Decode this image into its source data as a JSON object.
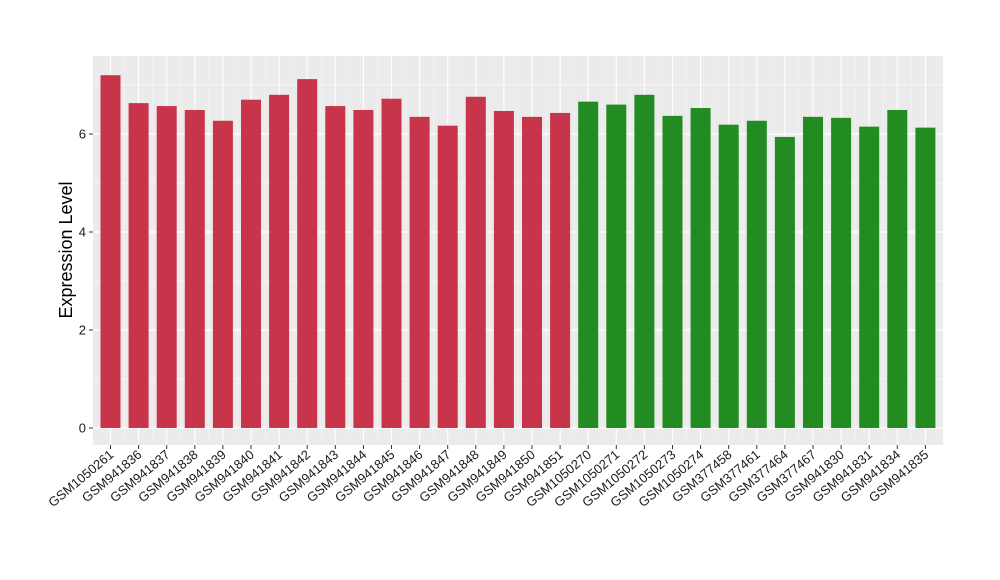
{
  "chart_data": {
    "type": "bar",
    "title": "",
    "xlabel": "",
    "ylabel": "Expression Level",
    "ylim": [
      0,
      7.6
    ],
    "yticks": [
      0,
      2,
      4,
      6
    ],
    "grid": true,
    "legend": "none",
    "colors": {
      "group_a": "#c8344a",
      "group_b": "#228b22",
      "panel_bg": "#ebebeb",
      "grid": "#ffffff"
    },
    "categories": [
      "GSM1050261",
      "GSM941836",
      "GSM941837",
      "GSM941838",
      "GSM941839",
      "GSM941840",
      "GSM941841",
      "GSM941842",
      "GSM941843",
      "GSM941844",
      "GSM941845",
      "GSM941846",
      "GSM941847",
      "GSM941848",
      "GSM941849",
      "GSM941850",
      "GSM941851",
      "GSM1050270",
      "GSM1050271",
      "GSM1050272",
      "GSM1050273",
      "GSM1050274",
      "GSM377458",
      "GSM377461",
      "GSM377464",
      "GSM377467",
      "GSM941830",
      "GSM941831",
      "GSM941834",
      "GSM941835"
    ],
    "values": [
      7.2,
      6.63,
      6.57,
      6.49,
      6.27,
      6.7,
      6.8,
      7.12,
      6.57,
      6.49,
      6.72,
      6.35,
      6.17,
      6.76,
      6.47,
      6.35,
      6.43,
      6.66,
      6.6,
      6.8,
      6.37,
      6.53,
      6.19,
      6.27,
      5.94,
      6.35,
      6.33,
      6.15,
      6.49,
      6.13
    ],
    "groups": [
      "a",
      "a",
      "a",
      "a",
      "a",
      "a",
      "a",
      "a",
      "a",
      "a",
      "a",
      "a",
      "a",
      "a",
      "a",
      "a",
      "a",
      "b",
      "b",
      "b",
      "b",
      "b",
      "b",
      "b",
      "b",
      "b",
      "b",
      "b",
      "b",
      "b"
    ]
  }
}
